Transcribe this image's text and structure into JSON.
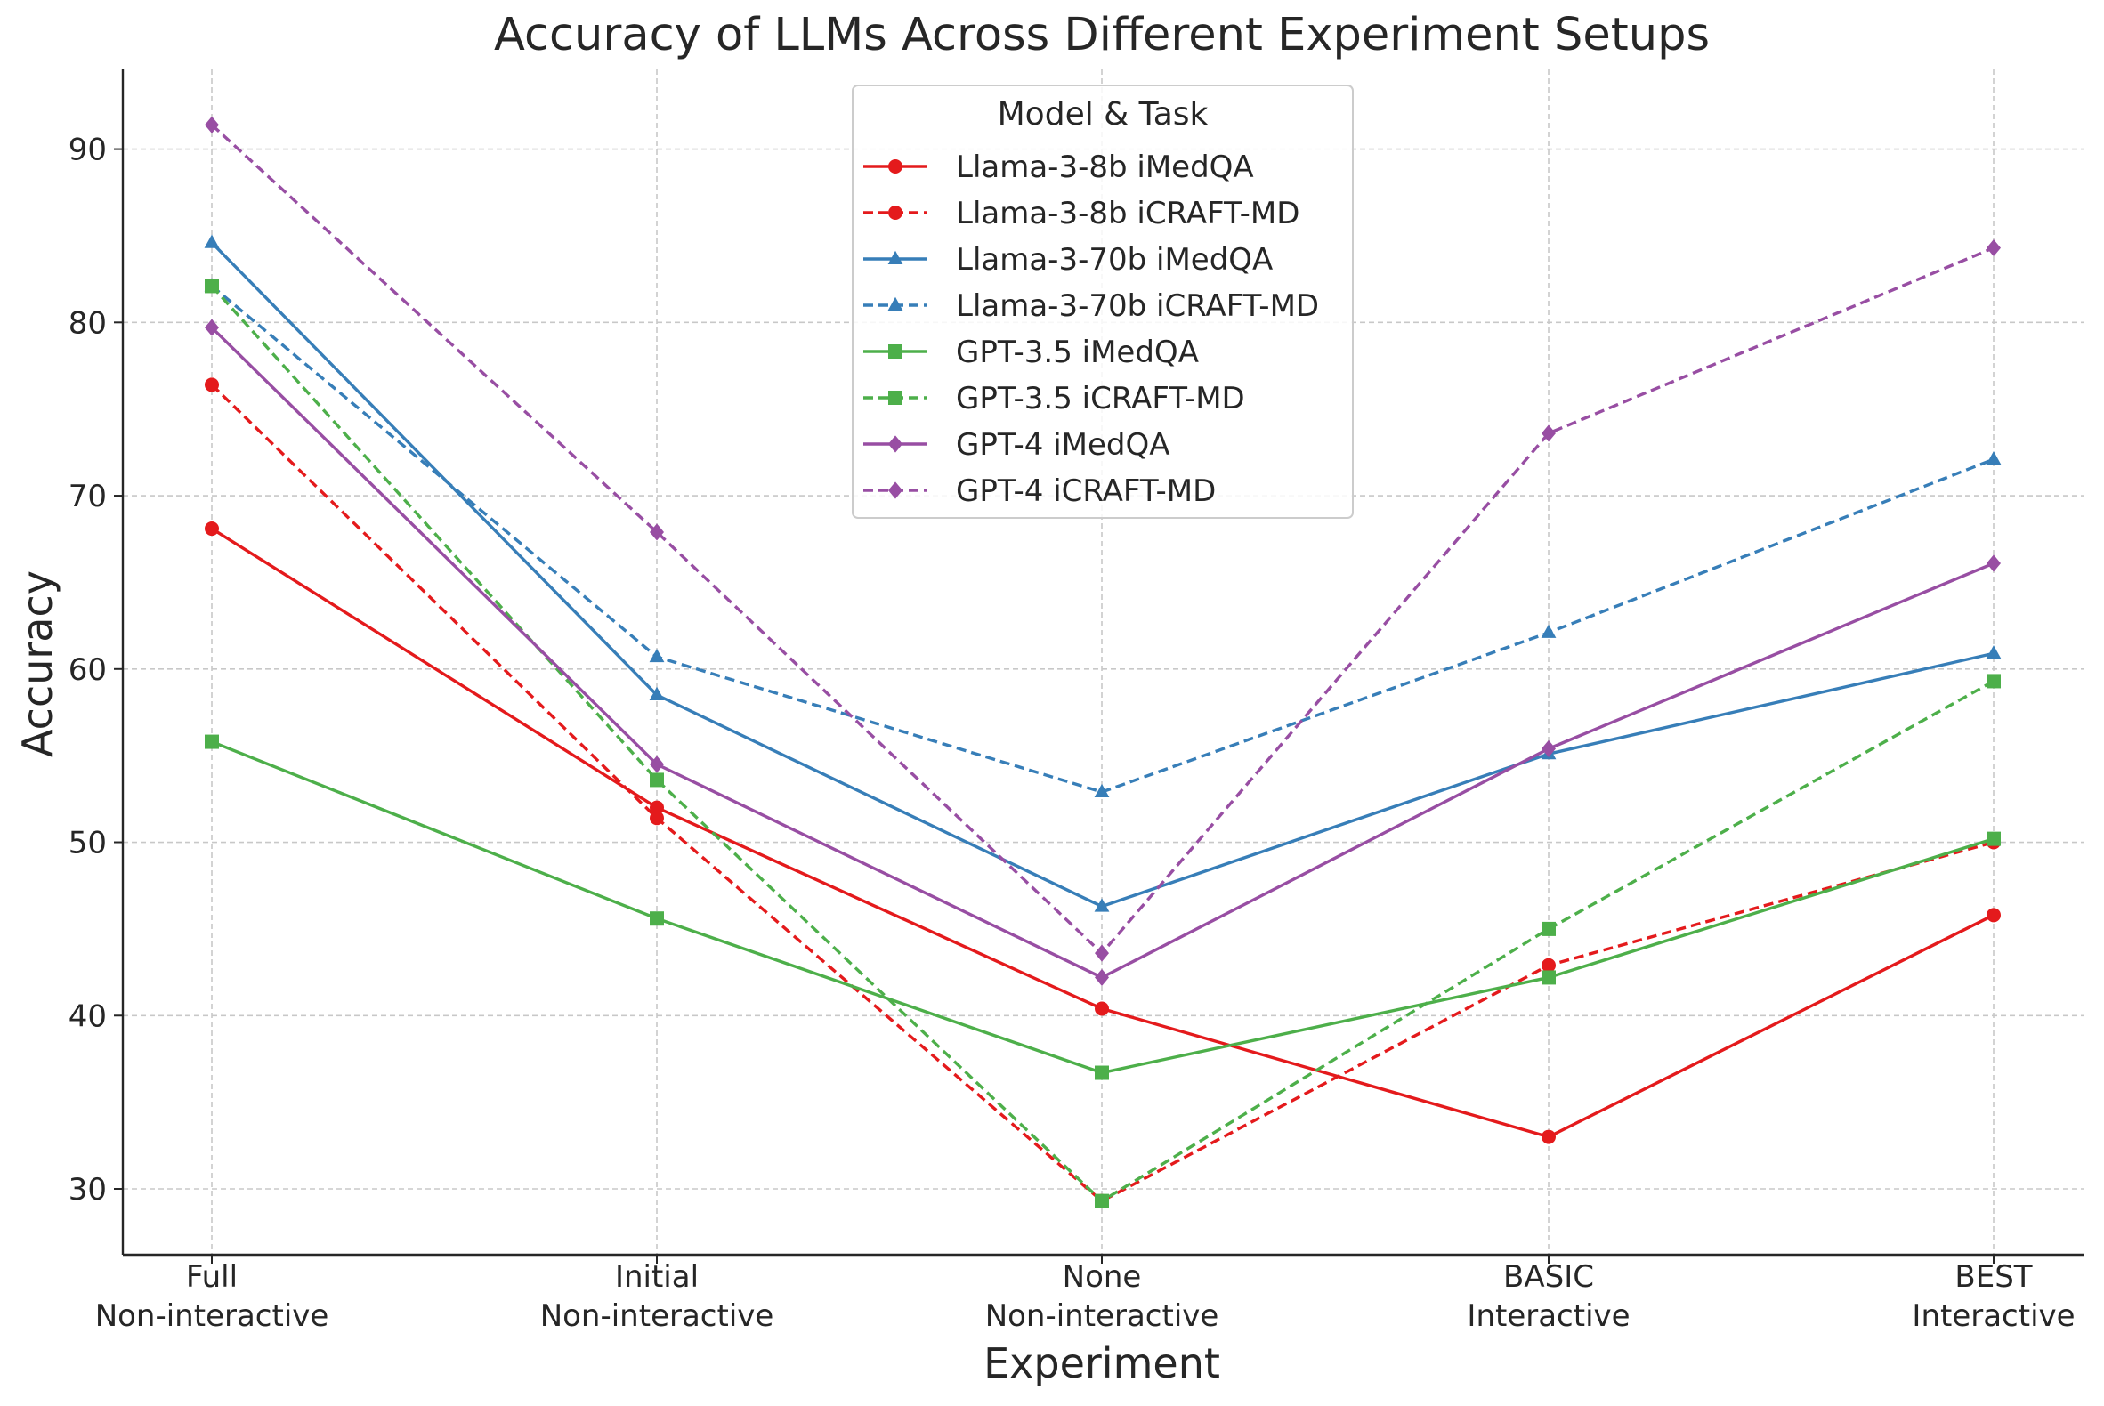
{
  "chart_data": {
    "type": "line",
    "title": "Accuracy of LLMs Across Different Experiment Setups",
    "xlabel": "Experiment",
    "ylabel": "Accuracy",
    "categories": [
      [
        "Full",
        "Non-interactive"
      ],
      [
        "Initial",
        "Non-interactive"
      ],
      [
        "None",
        "Non-interactive"
      ],
      [
        "BASIC",
        "Interactive"
      ],
      [
        "BEST",
        "Interactive"
      ]
    ],
    "ylim": [
      26.2,
      94.6
    ],
    "yticks": [
      30,
      40,
      50,
      60,
      70,
      80,
      90
    ],
    "grid": true,
    "legend_title": "Model & Task",
    "legend_position": "upper-center",
    "series": [
      {
        "name": "Llama-3-8b iMedQA",
        "color": "#e41a1c",
        "dash": "solid",
        "marker": "circle",
        "values": [
          68.1,
          52.0,
          40.4,
          33.0,
          45.8
        ]
      },
      {
        "name": "Llama-3-8b iCRAFT-MD",
        "color": "#e41a1c",
        "dash": "dashed",
        "marker": "circle",
        "values": [
          76.4,
          51.4,
          29.3,
          42.9,
          50.0
        ]
      },
      {
        "name": "Llama-3-70b iMedQA",
        "color": "#377eb8",
        "dash": "solid",
        "marker": "triangle",
        "values": [
          84.6,
          58.5,
          46.3,
          55.1,
          60.9
        ]
      },
      {
        "name": "Llama-3-70b iCRAFT-MD",
        "color": "#377eb8",
        "dash": "dashed",
        "marker": "triangle",
        "values": [
          82.1,
          60.7,
          52.9,
          62.1,
          72.1
        ]
      },
      {
        "name": "GPT-3.5 iMedQA",
        "color": "#4daf4a",
        "dash": "solid",
        "marker": "square",
        "values": [
          55.8,
          45.6,
          36.7,
          42.2,
          50.2
        ]
      },
      {
        "name": "GPT-3.5 iCRAFT-MD",
        "color": "#4daf4a",
        "dash": "dashed",
        "marker": "square",
        "values": [
          82.1,
          53.6,
          29.3,
          45.0,
          59.3
        ]
      },
      {
        "name": "GPT-4 iMedQA",
        "color": "#984ea3",
        "dash": "solid",
        "marker": "diamond",
        "values": [
          79.7,
          54.5,
          42.2,
          55.4,
          66.1
        ]
      },
      {
        "name": "GPT-4 iCRAFT-MD",
        "color": "#984ea3",
        "dash": "dashed",
        "marker": "diamond",
        "values": [
          91.4,
          67.9,
          43.6,
          73.6,
          84.3
        ]
      }
    ]
  }
}
